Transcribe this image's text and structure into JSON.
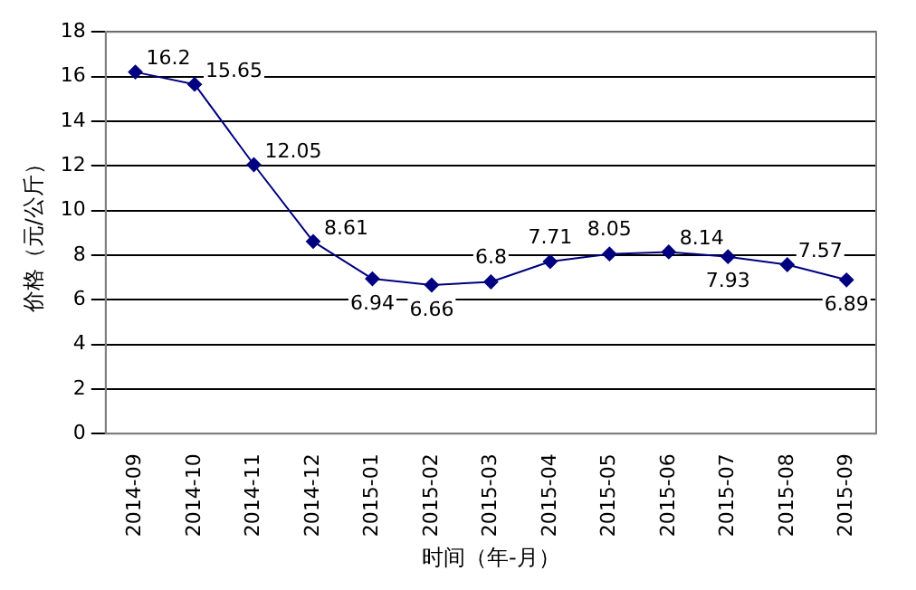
{
  "chart_data": {
    "type": "line",
    "xlabel": "时间（年-月）",
    "ylabel": "价格（元/公斤）",
    "categories": [
      "2014-09",
      "2014-10",
      "2014-11",
      "2014-12",
      "2015-01",
      "2015-02",
      "2015-03",
      "2015-04",
      "2015-05",
      "2015-06",
      "2015-07",
      "2015-08",
      "2015-09"
    ],
    "series": [
      {
        "color": "#000080",
        "values": [
          16.2,
          15.65,
          12.05,
          8.61,
          6.94,
          6.66,
          6.8,
          7.71,
          8.05,
          8.14,
          7.93,
          7.57,
          6.89
        ]
      }
    ],
    "ylim": [
      0,
      18
    ],
    "yticks": [
      0,
      2,
      4,
      6,
      8,
      10,
      12,
      14,
      16,
      18
    ],
    "grid": "y",
    "marker": "diamond",
    "line_style": "solid",
    "data_labels": true,
    "legend": false
  }
}
